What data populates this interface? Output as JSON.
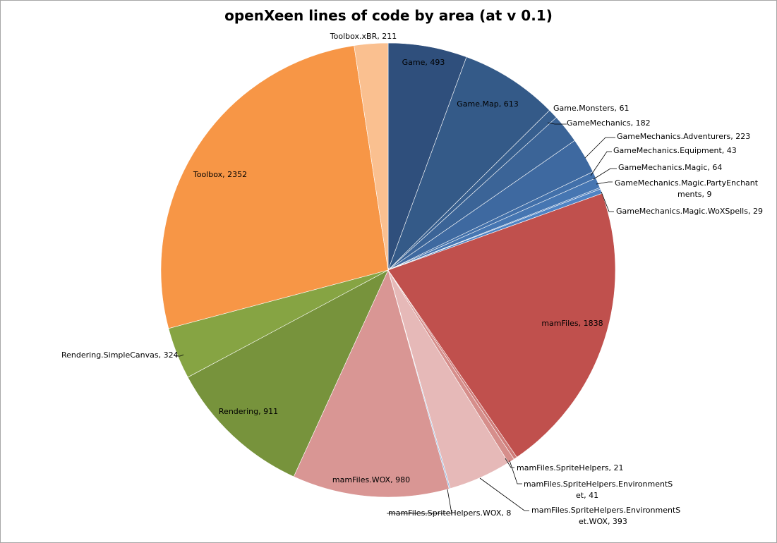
{
  "chart_data": {
    "type": "pie",
    "title": "openXeen lines of code by area (at v 0.1)",
    "slices": [
      {
        "label": "Game",
        "value": 493,
        "color": "#2f4f7c",
        "text": "Game, 493"
      },
      {
        "label": "Game.Map",
        "value": 613,
        "color": "#345a88",
        "text": "Game.Map, 613"
      },
      {
        "label": "Game.Monsters",
        "value": 61,
        "color": "#375f8f",
        "text": "Game.Monsters, 61"
      },
      {
        "label": "GameMechanics",
        "value": 182,
        "color": "#3b6497",
        "text": "GameMechanics, 182"
      },
      {
        "label": "GameMechanics.Adventurers",
        "value": 223,
        "color": "#3e69a0",
        "text": "GameMechanics.Adventurers, 223"
      },
      {
        "label": "GameMechanics.Equipment",
        "value": 43,
        "color": "#4270aa",
        "text": "GameMechanics.Equipment, 43"
      },
      {
        "label": "GameMechanics.Magic",
        "value": 64,
        "color": "#4676b2",
        "text": "GameMechanics.Magic, 64"
      },
      {
        "label": "GameMechanics.Magic.PartyEnchantments",
        "value": 9,
        "color": "#4a7cbb",
        "text": [
          "GameMechanics.Magic.PartyEnchant",
          "ments, 9"
        ]
      },
      {
        "label": "GameMechanics.Magic.WoXSpells",
        "value": 29,
        "color": "#4f83c4",
        "text": "GameMechanics.Magic.WoXSpells, 29"
      },
      {
        "label": "mamFiles",
        "value": 1838,
        "color": "#c0504d",
        "text": "mamFiles, 1838"
      },
      {
        "label": "mamFiles.SpriteHelpers",
        "value": 21,
        "color": "#cf7b78",
        "text": "mamFiles.SpriteHelpers, 21"
      },
      {
        "label": "mamFiles.SpriteHelpers.EnvironmentSet",
        "value": 41,
        "color": "#d68e8b",
        "text": [
          "mamFiles.SpriteHelpers.EnvironmentS",
          "et, 41"
        ]
      },
      {
        "label": "mamFiles.SpriteHelpers.EnvironmentSet.WOX",
        "value": 393,
        "color": "#e6b9b8",
        "text": [
          "mamFiles.SpriteHelpers.EnvironmentS",
          "et.WOX, 393"
        ]
      },
      {
        "label": "mamFiles.SpriteHelpers.WOX",
        "value": 8,
        "color": "#9dbbe0",
        "text": "mamFiles.SpriteHelpers.WOX, 8"
      },
      {
        "label": "mamFiles.WOX",
        "value": 980,
        "color": "#d99694",
        "text": "mamFiles.WOX, 980"
      },
      {
        "label": "Rendering",
        "value": 911,
        "color": "#77933c",
        "text": "Rendering, 911"
      },
      {
        "label": "Rendering.SimpleCanvas",
        "value": 324,
        "color": "#86a443",
        "text": "Rendering.SimpleCanvas, 324"
      },
      {
        "label": "Toolbox",
        "value": 2352,
        "color": "#f79646",
        "text": "Toolbox, 2352"
      },
      {
        "label": "Toolbox.xBR",
        "value": 211,
        "color": "#fac090",
        "text": "Toolbox.xBR, 211"
      }
    ],
    "legend": "none",
    "start_angle": "12 o'clock",
    "direction": "clockwise"
  }
}
